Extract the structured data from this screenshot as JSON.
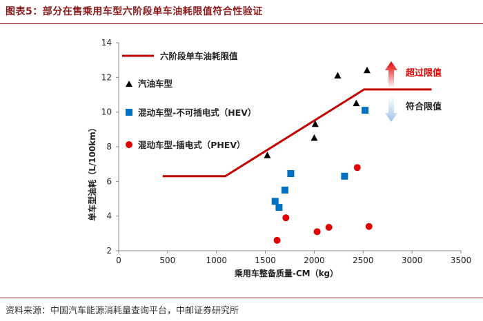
{
  "figure": {
    "title": "图表5：部分在售乘用车型六阶段单车油耗限值符合性验证",
    "source": "资料来源：中国汽车能源消耗量查询平台，中邮证券研究所"
  },
  "colors": {
    "limit_line": "#c00000",
    "gasoline": "#000000",
    "hev": "#0070c0",
    "phev": "#e00000",
    "arrow_up": "#e00000",
    "arrow_down": "#9dc3e6",
    "title": "#8b1a1a"
  },
  "chart_data": {
    "type": "scatter",
    "title": "",
    "xlabel": "乘用车整备质量-CM（kg）",
    "ylabel": "单车型油耗（L/100km）",
    "xlim": [
      0,
      3500
    ],
    "ylim": [
      2,
      14
    ],
    "xticks": [
      0,
      500,
      1000,
      1500,
      2000,
      2500,
      3000,
      3500
    ],
    "yticks": [
      2,
      4,
      6,
      8,
      10,
      12,
      14
    ],
    "grid": false,
    "legend_position": "top-left",
    "limit_line": {
      "name": "六阶段单车油耗限值",
      "points": [
        [
          450,
          6.3
        ],
        [
          1090,
          6.3
        ],
        [
          2510,
          11.3
        ],
        [
          3200,
          11.3
        ]
      ]
    },
    "series": [
      {
        "name": "汽油车型",
        "marker": "triangle",
        "points": [
          [
            1520,
            7.5
          ],
          [
            2000,
            8.5
          ],
          [
            2010,
            9.3
          ],
          [
            2240,
            12.1
          ],
          [
            2430,
            10.5
          ],
          [
            2540,
            12.4
          ]
        ]
      },
      {
        "name": "混动车型-不可插电式（HEV）",
        "marker": "square",
        "points": [
          [
            1600,
            4.85
          ],
          [
            1640,
            4.5
          ],
          [
            1700,
            5.5
          ],
          [
            1760,
            6.45
          ],
          [
            2310,
            6.3
          ],
          [
            2520,
            10.1
          ]
        ]
      },
      {
        "name": "混动车型-插电式（PHEV）",
        "marker": "circle",
        "points": [
          [
            1620,
            2.6
          ],
          [
            1710,
            3.9
          ],
          [
            2030,
            3.1
          ],
          [
            2150,
            3.35
          ],
          [
            2440,
            6.8
          ],
          [
            2560,
            3.4
          ]
        ]
      }
    ],
    "annotations": {
      "above": "超过限值",
      "below": "符合限值"
    }
  }
}
